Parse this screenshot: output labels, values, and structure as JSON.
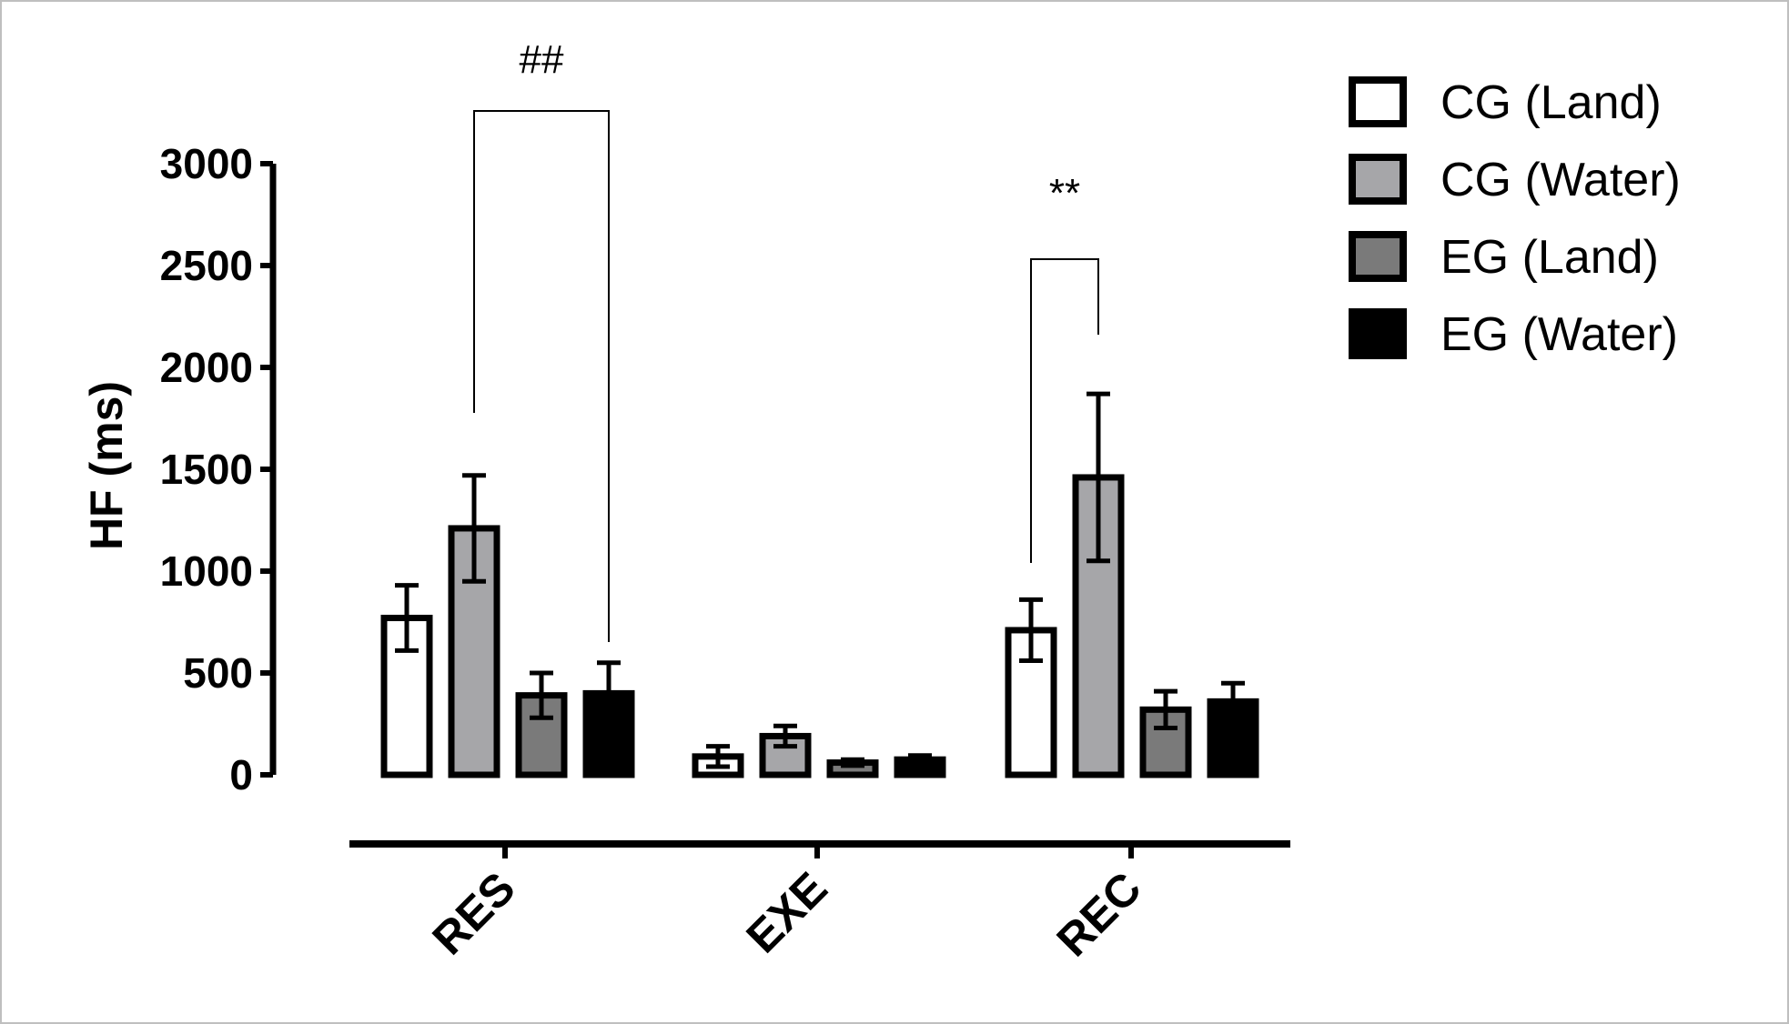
{
  "colors": {
    "stroke": "#000000",
    "cg_land": "#ffffff",
    "cg_water": "#a6a6a9",
    "eg_land": "#7a7a7a",
    "eg_water": "#000000"
  },
  "chart_data": {
    "type": "bar",
    "ylabel": "HF (ms)",
    "xlabel": "",
    "ylim": [
      0,
      3000
    ],
    "yticks": [
      "0",
      "500",
      "1000",
      "1500",
      "2000",
      "2500",
      "3000"
    ],
    "categories": [
      "RES",
      "EXE",
      "REC"
    ],
    "legend_position": "top-right",
    "grid": false,
    "series": [
      {
        "name": "CG (Land)",
        "color_key": "cg_land",
        "values": [
          770,
          90,
          710
        ],
        "errors": [
          160,
          50,
          150
        ]
      },
      {
        "name": "CG (Water)",
        "color_key": "cg_water",
        "values": [
          1210,
          190,
          1460
        ],
        "errors": [
          260,
          50,
          410
        ]
      },
      {
        "name": "EG (Land)",
        "color_key": "eg_land",
        "values": [
          390,
          60,
          320
        ],
        "errors": [
          110,
          15,
          90
        ]
      },
      {
        "name": "EG (Water)",
        "color_key": "eg_water",
        "values": [
          400,
          75,
          360
        ],
        "errors": [
          150,
          20,
          90
        ]
      }
    ],
    "annotations": [
      {
        "label": "##",
        "category": 0,
        "from_series": 1,
        "to_series": 3
      },
      {
        "label": "**",
        "category": 2,
        "from_series": 0,
        "to_series": 1
      }
    ]
  }
}
